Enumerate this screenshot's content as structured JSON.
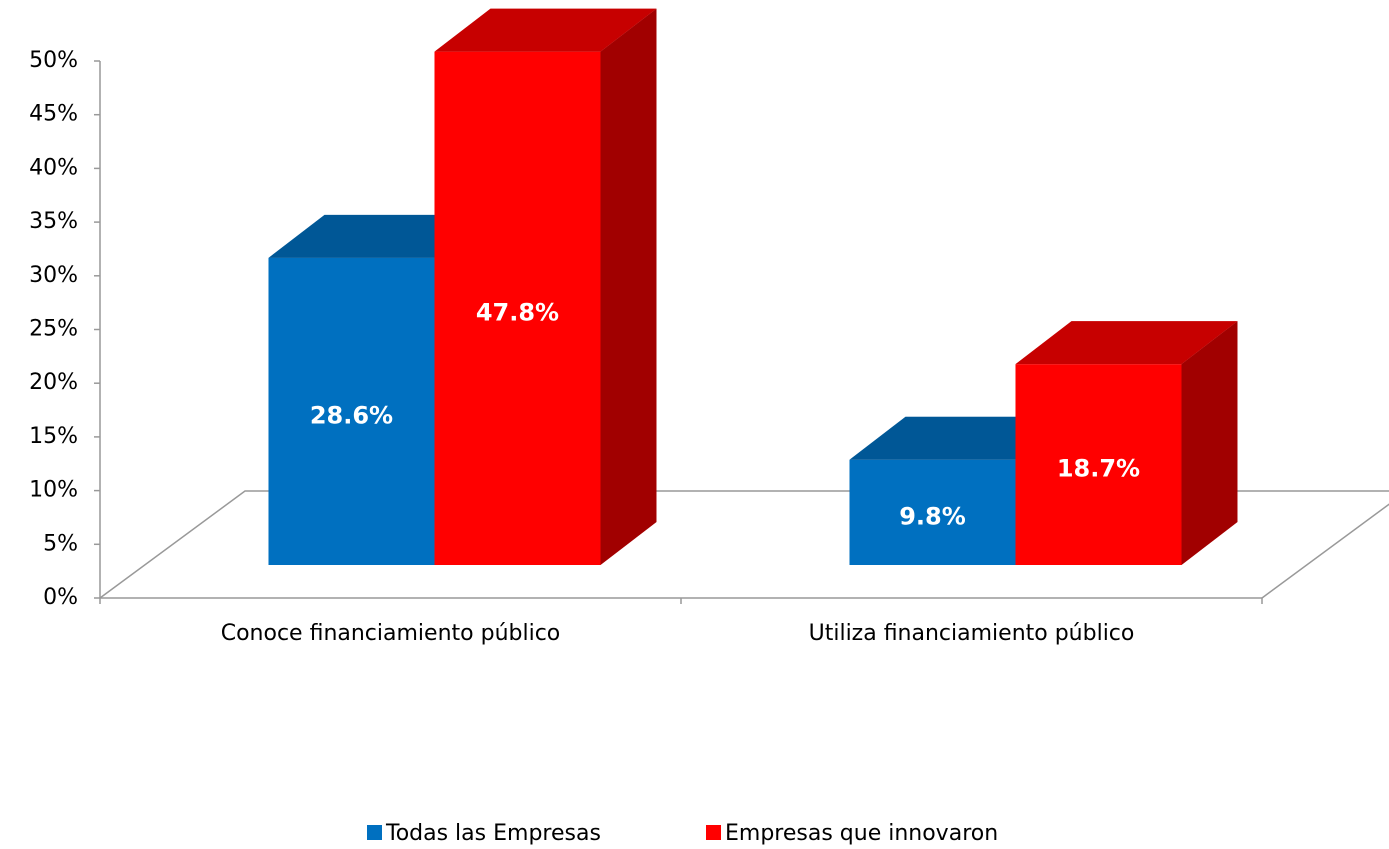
{
  "chart_data": {
    "type": "bar3d",
    "categories": [
      "Conoce financiamiento público",
      "Utiliza financiamiento público"
    ],
    "series": [
      {
        "name": "Todas las Empresas",
        "color": "#0070c0",
        "values": [
          28.6,
          9.8
        ],
        "value_labels": [
          "28.6%",
          "9.8%"
        ]
      },
      {
        "name": "Empresas que innovaron",
        "color": "#ff0000",
        "values": [
          47.8,
          18.7
        ],
        "value_labels": [
          "47.8%",
          "18.7%"
        ]
      }
    ],
    "ylim": [
      0,
      50
    ],
    "yticks": [
      {
        "value": 0,
        "label": "0%"
      },
      {
        "value": 5,
        "label": "5%"
      },
      {
        "value": 10,
        "label": "10%"
      },
      {
        "value": 15,
        "label": "15%"
      },
      {
        "value": 20,
        "label": "20%"
      },
      {
        "value": 25,
        "label": "25%"
      },
      {
        "value": 30,
        "label": "30%"
      },
      {
        "value": 35,
        "label": "35%"
      },
      {
        "value": 40,
        "label": "40%"
      },
      {
        "value": 45,
        "label": "45%"
      },
      {
        "value": 50,
        "label": "50%"
      }
    ],
    "legend": "bottom"
  }
}
